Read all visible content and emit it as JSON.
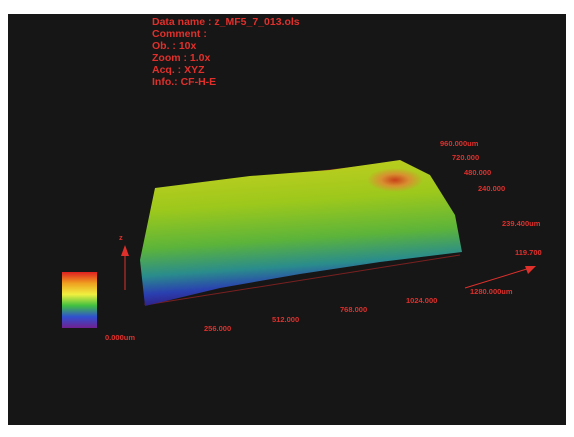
{
  "info": [
    "Data name : z_MF5_7_013.ols",
    "Comment   :",
    "Ob.  : 10x",
    "Zoom : 1.0x",
    "Acq. : XYZ",
    "Info.: CF-H-E"
  ],
  "y_axis_labels": [
    "960.000um",
    "720.000",
    "480.000",
    "240.000"
  ],
  "z_axis_labels": [
    "239.400um",
    "119.700"
  ],
  "x_axis_labels": [
    "256.000",
    "512.000",
    "768.000",
    "1024.000",
    "1280.000um"
  ],
  "scale_label": "0.000um",
  "z_label": "z"
}
